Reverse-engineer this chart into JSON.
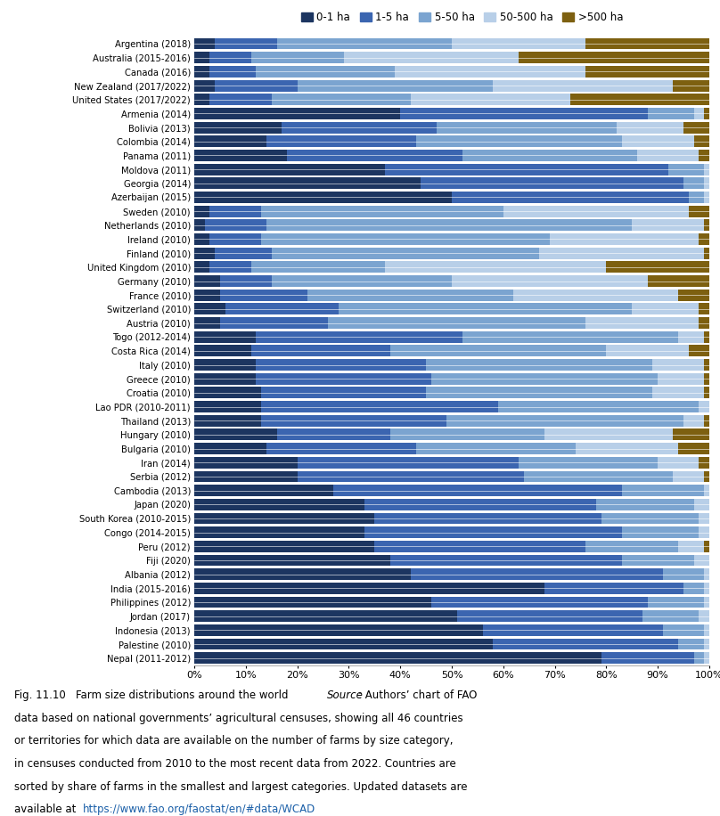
{
  "countries_top_to_bottom": [
    "Argentina (2018)",
    "Australia (2015-2016)",
    "Canada (2016)",
    "New Zealand (2017/2022)",
    "United States (2017/2022)",
    "Armenia (2014)",
    "Bolivia (2013)",
    "Colombia (2014)",
    "Panama (2011)",
    "Moldova (2011)",
    "Georgia (2014)",
    "Azerbaijan (2015)",
    "Sweden (2010)",
    "Netherlands (2010)",
    "Ireland (2010)",
    "Finland (2010)",
    "United Kingdom (2010)",
    "Germany (2010)",
    "France (2010)",
    "Switzerland (2010)",
    "Austria (2010)",
    "Togo (2012-2014)",
    "Costa Rica (2014)",
    "Italy (2010)",
    "Greece (2010)",
    "Croatia (2010)",
    "Lao PDR (2010-2011)",
    "Thailand (2013)",
    "Hungary (2010)",
    "Bulgaria (2010)",
    "Iran (2014)",
    "Serbia (2012)",
    "Cambodia (2013)",
    "Japan (2020)",
    "South Korea (2010-2015)",
    "Congo (2014-2015)",
    "Peru (2012)",
    "Fiji (2020)",
    "Albania (2012)",
    "India (2015-2016)",
    "Philippines (2012)",
    "Jordan (2017)",
    "Indonesia (2013)",
    "Palestine (2010)",
    "Nepal (2011-2012)"
  ],
  "data": {
    "Argentina (2018)": [
      4,
      12,
      34,
      26,
      24
    ],
    "Australia (2015-2016)": [
      3,
      8,
      18,
      34,
      37
    ],
    "Canada (2016)": [
      3,
      9,
      27,
      37,
      24
    ],
    "New Zealand (2017/2022)": [
      4,
      16,
      38,
      35,
      7
    ],
    "United States (2017/2022)": [
      3,
      12,
      27,
      31,
      27
    ],
    "Armenia (2014)": [
      40,
      48,
      9,
      2,
      1
    ],
    "Bolivia (2013)": [
      17,
      30,
      35,
      13,
      5
    ],
    "Colombia (2014)": [
      14,
      29,
      40,
      14,
      3
    ],
    "Panama (2011)": [
      18,
      34,
      34,
      12,
      2
    ],
    "Moldova (2011)": [
      37,
      55,
      7,
      1,
      0
    ],
    "Georgia (2014)": [
      44,
      51,
      4,
      1,
      0
    ],
    "Azerbaijan (2015)": [
      50,
      46,
      3,
      1,
      0
    ],
    "Sweden (2010)": [
      3,
      10,
      47,
      36,
      4
    ],
    "Netherlands (2010)": [
      2,
      12,
      71,
      14,
      1
    ],
    "Ireland (2010)": [
      3,
      10,
      56,
      29,
      2
    ],
    "Finland (2010)": [
      4,
      11,
      52,
      32,
      1
    ],
    "United Kingdom (2010)": [
      3,
      8,
      26,
      43,
      20
    ],
    "Germany (2010)": [
      5,
      10,
      35,
      38,
      12
    ],
    "France (2010)": [
      5,
      17,
      40,
      32,
      6
    ],
    "Switzerland (2010)": [
      6,
      22,
      57,
      13,
      2
    ],
    "Austria (2010)": [
      5,
      21,
      50,
      22,
      2
    ],
    "Togo (2012-2014)": [
      12,
      40,
      42,
      5,
      1
    ],
    "Costa Rica (2014)": [
      11,
      27,
      42,
      16,
      4
    ],
    "Italy (2010)": [
      12,
      33,
      44,
      10,
      1
    ],
    "Greece (2010)": [
      12,
      34,
      44,
      9,
      1
    ],
    "Croatia (2010)": [
      13,
      32,
      44,
      10,
      1
    ],
    "Lao PDR (2010-2011)": [
      13,
      46,
      39,
      2,
      0
    ],
    "Thailand (2013)": [
      13,
      36,
      46,
      4,
      1
    ],
    "Hungary (2010)": [
      16,
      22,
      30,
      25,
      7
    ],
    "Bulgaria (2010)": [
      14,
      29,
      31,
      20,
      6
    ],
    "Iran (2014)": [
      20,
      43,
      27,
      8,
      2
    ],
    "Serbia (2012)": [
      20,
      44,
      29,
      6,
      1
    ],
    "Cambodia (2013)": [
      27,
      56,
      16,
      1,
      0
    ],
    "Japan (2020)": [
      33,
      45,
      19,
      3,
      0
    ],
    "South Korea (2010-2015)": [
      35,
      44,
      19,
      2,
      0
    ],
    "Congo (2014-2015)": [
      33,
      50,
      15,
      2,
      0
    ],
    "Peru (2012)": [
      35,
      41,
      18,
      5,
      1
    ],
    "Fiji (2020)": [
      38,
      45,
      14,
      3,
      0
    ],
    "Albania (2012)": [
      42,
      49,
      8,
      1,
      0
    ],
    "India (2015-2016)": [
      68,
      27,
      4,
      1,
      0
    ],
    "Philippines (2012)": [
      46,
      42,
      11,
      1,
      0
    ],
    "Jordan (2017)": [
      51,
      36,
      11,
      2,
      0
    ],
    "Indonesia (2013)": [
      56,
      35,
      8,
      1,
      0
    ],
    "Palestine (2010)": [
      58,
      36,
      5,
      1,
      0
    ],
    "Nepal (2011-2012)": [
      79,
      18,
      2,
      1,
      0
    ]
  },
  "colors": [
    "#1c3560",
    "#3b65b0",
    "#7ba4d0",
    "#b8cfe8",
    "#7d6010"
  ],
  "legend_labels": [
    "0-1 ha",
    "1-5 ha",
    "5-50 ha",
    "50-500 ha",
    ">500 ha"
  ],
  "figsize": [
    8.08,
    9.16
  ],
  "dpi": 100
}
